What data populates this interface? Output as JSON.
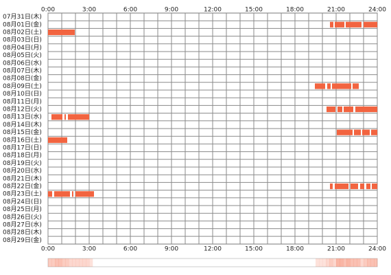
{
  "chart_data": {
    "type": "timeline",
    "color": "#f26440",
    "grid": true,
    "xlim": [
      0,
      24
    ],
    "xticks": [
      {
        "value": 0,
        "label": "0:00"
      },
      {
        "value": 3,
        "label": "3:00"
      },
      {
        "value": 6,
        "label": "6:00"
      },
      {
        "value": 9,
        "label": "9:00"
      },
      {
        "value": 12,
        "label": "12:00"
      },
      {
        "value": 15,
        "label": "15:00"
      },
      {
        "value": 18,
        "label": "18:00"
      },
      {
        "value": 21,
        "label": "21:00"
      },
      {
        "value": 24,
        "label": "24:00"
      }
    ],
    "categories": [
      "07月31日(木)",
      "08月01日(金)",
      "08月02日(土)",
      "08月03日(日)",
      "08月04日(月)",
      "08月05日(火)",
      "08月06日(水)",
      "08月07日(木)",
      "08月08日(金)",
      "08月09日(土)",
      "08月10日(日)",
      "08月11日(月)",
      "08月12日(火)",
      "08月13日(水)",
      "08月14日(木)",
      "08月15日(金)",
      "08月16日(土)",
      "08月17日(日)",
      "08月18日(月)",
      "08月19日(火)",
      "08月20日(水)",
      "08月21日(木)",
      "08月22日(金)",
      "08月23日(土)",
      "08月24日(日)",
      "08月25日(月)",
      "08月26日(火)",
      "08月27日(水)",
      "08月28日(木)",
      "08月29日(金)"
    ],
    "segments": [
      [],
      [
        [
          20.55,
          20.8
        ],
        [
          20.9,
          21.6
        ],
        [
          21.7,
          22.85
        ],
        [
          23.0,
          24
        ]
      ],
      [
        [
          0,
          1.95
        ]
      ],
      [],
      [],
      [],
      [],
      [],
      [],
      [
        [
          19.45,
          20.2
        ],
        [
          20.35,
          20.6
        ],
        [
          20.7,
          22.1
        ],
        [
          22.2,
          22.65
        ]
      ],
      [],
      [],
      [
        [
          20.3,
          20.95
        ],
        [
          21.1,
          21.45
        ],
        [
          21.55,
          22.25
        ],
        [
          22.4,
          24
        ]
      ],
      [
        [
          0.25,
          1.05
        ],
        [
          1.2,
          1.3
        ],
        [
          1.45,
          3.0
        ]
      ],
      [],
      [
        [
          21.05,
          22.2
        ],
        [
          22.3,
          22.8
        ],
        [
          22.9,
          23.45
        ],
        [
          23.55,
          24
        ]
      ],
      [
        [
          0,
          1.4
        ]
      ],
      [],
      [],
      [],
      [],
      [],
      [
        [
          20.55,
          20.75
        ],
        [
          20.9,
          21.9
        ],
        [
          22.05,
          22.6
        ],
        [
          22.75,
          23.05
        ],
        [
          23.2,
          23.5
        ],
        [
          23.6,
          24
        ]
      ],
      [
        [
          0,
          0.3
        ],
        [
          0.45,
          1.6
        ],
        [
          1.75,
          1.85
        ],
        [
          2.0,
          3.35
        ]
      ],
      [],
      [],
      [],
      [],
      [],
      []
    ]
  }
}
